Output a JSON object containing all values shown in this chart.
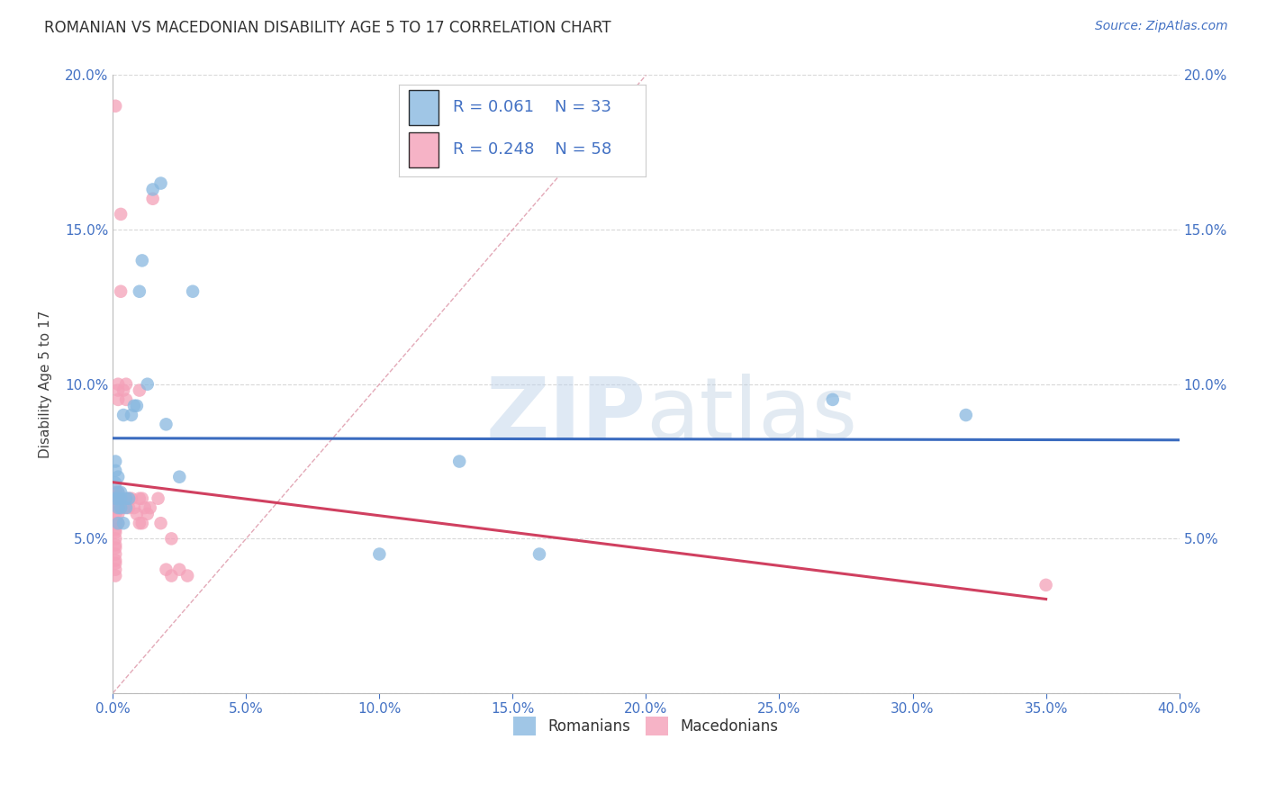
{
  "title": "ROMANIAN VS MACEDONIAN DISABILITY AGE 5 TO 17 CORRELATION CHART",
  "source": "Source: ZipAtlas.com",
  "ylabel": "Disability Age 5 to 17",
  "xlim": [
    0.0,
    0.4
  ],
  "ylim": [
    0.0,
    0.2
  ],
  "xticks": [
    0.0,
    0.05,
    0.1,
    0.15,
    0.2,
    0.25,
    0.3,
    0.35,
    0.4
  ],
  "yticks": [
    0.0,
    0.05,
    0.1,
    0.15,
    0.2
  ],
  "background_color": "#ffffff",
  "grid_color": "#d8d8d8",
  "watermark": "ZIPatlas",
  "legend_romanian_R": 0.061,
  "legend_romanian_N": 33,
  "legend_macedonian_R": 0.248,
  "legend_macedonian_N": 58,
  "romanian_color": "#88b8e0",
  "macedonian_color": "#f4a0b8",
  "romanian_line_color": "#3a6bbf",
  "macedonian_line_color": "#d04060",
  "diagonal_color": "#e0a0b0",
  "romanian_x": [
    0.001,
    0.001,
    0.001,
    0.001,
    0.002,
    0.002,
    0.002,
    0.002,
    0.002,
    0.003,
    0.003,
    0.003,
    0.004,
    0.004,
    0.005,
    0.005,
    0.006,
    0.007,
    0.008,
    0.009,
    0.01,
    0.011,
    0.013,
    0.015,
    0.018,
    0.02,
    0.025,
    0.03,
    0.1,
    0.13,
    0.16,
    0.27,
    0.32
  ],
  "romanian_y": [
    0.063,
    0.068,
    0.072,
    0.075,
    0.06,
    0.063,
    0.065,
    0.07,
    0.055,
    0.063,
    0.065,
    0.06,
    0.055,
    0.09,
    0.063,
    0.06,
    0.063,
    0.09,
    0.093,
    0.093,
    0.13,
    0.14,
    0.1,
    0.163,
    0.165,
    0.087,
    0.07,
    0.13,
    0.045,
    0.075,
    0.045,
    0.095,
    0.09
  ],
  "macedonian_x": [
    0.001,
    0.001,
    0.001,
    0.001,
    0.001,
    0.001,
    0.001,
    0.001,
    0.001,
    0.001,
    0.001,
    0.001,
    0.001,
    0.001,
    0.001,
    0.001,
    0.001,
    0.001,
    0.001,
    0.001,
    0.002,
    0.002,
    0.002,
    0.002,
    0.002,
    0.002,
    0.002,
    0.002,
    0.003,
    0.003,
    0.003,
    0.003,
    0.004,
    0.004,
    0.005,
    0.005,
    0.006,
    0.006,
    0.007,
    0.008,
    0.009,
    0.01,
    0.01,
    0.01,
    0.011,
    0.011,
    0.012,
    0.013,
    0.014,
    0.015,
    0.017,
    0.018,
    0.02,
    0.022,
    0.022,
    0.025,
    0.028,
    0.35
  ],
  "macedonian_y": [
    0.19,
    0.065,
    0.065,
    0.063,
    0.06,
    0.063,
    0.06,
    0.058,
    0.055,
    0.055,
    0.053,
    0.052,
    0.05,
    0.048,
    0.047,
    0.045,
    0.043,
    0.042,
    0.04,
    0.038,
    0.1,
    0.098,
    0.095,
    0.065,
    0.063,
    0.06,
    0.058,
    0.055,
    0.155,
    0.13,
    0.063,
    0.06,
    0.098,
    0.06,
    0.1,
    0.095,
    0.063,
    0.06,
    0.063,
    0.06,
    0.058,
    0.098,
    0.063,
    0.055,
    0.063,
    0.055,
    0.06,
    0.058,
    0.06,
    0.16,
    0.063,
    0.055,
    0.04,
    0.05,
    0.038,
    0.04,
    0.038,
    0.035
  ]
}
